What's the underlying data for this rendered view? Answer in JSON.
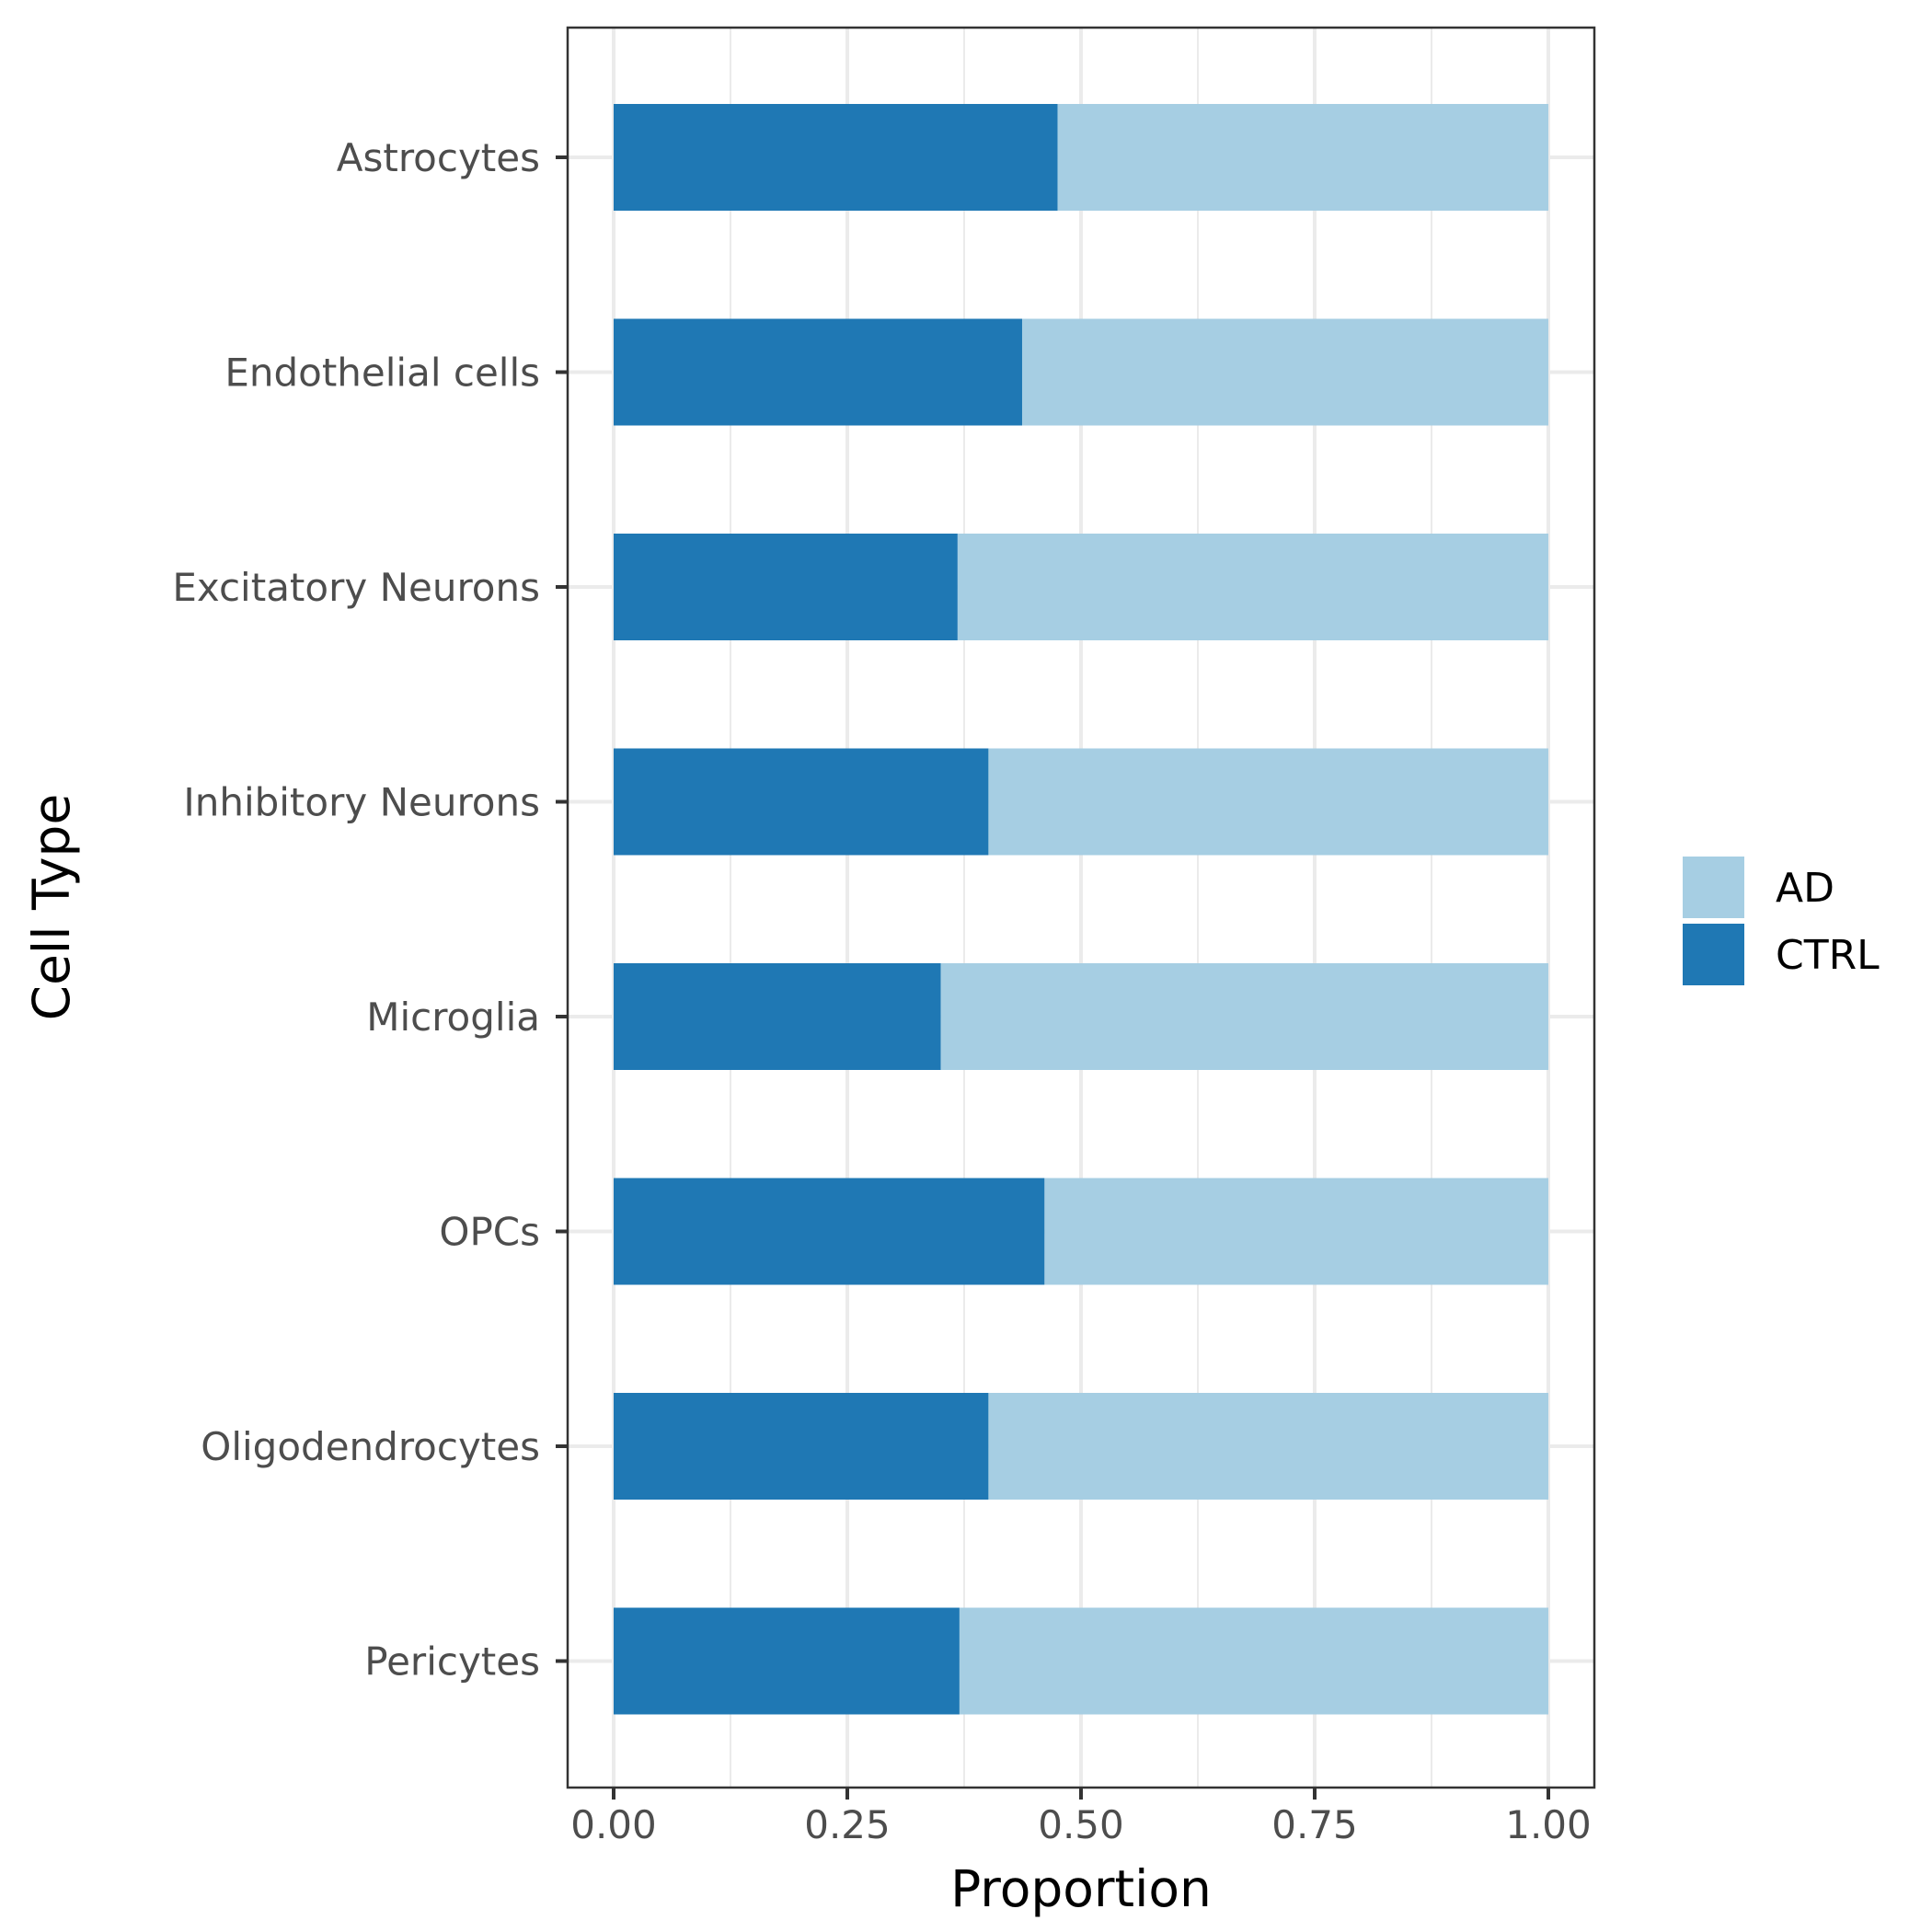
{
  "chart_data": {
    "type": "bar",
    "orientation": "horizontal",
    "stacked": true,
    "categories": [
      "Astrocytes",
      "Endothelial cells",
      "Excitatory Neurons",
      "Inhibitory Neurons",
      "Microglia",
      "OPCs",
      "Oligodendrocytes",
      "Pericytes"
    ],
    "series": [
      {
        "name": "CTRL",
        "color": "#1f78b4",
        "values": [
          0.475,
          0.437,
          0.368,
          0.401,
          0.35,
          0.461,
          0.401,
          0.37
        ]
      },
      {
        "name": "AD",
        "color": "#a6cee3",
        "values": [
          0.525,
          0.563,
          0.632,
          0.599,
          0.65,
          0.539,
          0.599,
          0.63
        ]
      }
    ],
    "xlabel": "Proportion",
    "ylabel": "Cell Type",
    "xlim": [
      0,
      1
    ],
    "xticks": [
      "0.00",
      "0.25",
      "0.50",
      "0.75",
      "1.00"
    ],
    "xtick_values": [
      0,
      0.25,
      0.5,
      0.75,
      1.0
    ],
    "legend": {
      "entries": [
        "AD",
        "CTRL"
      ],
      "position": "right"
    },
    "grid": true
  }
}
